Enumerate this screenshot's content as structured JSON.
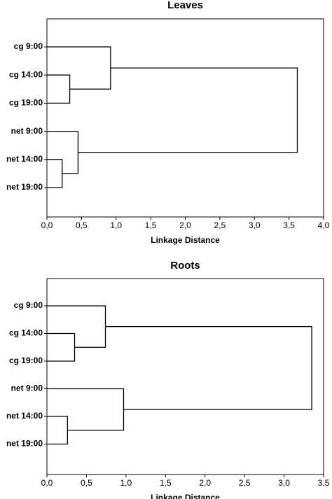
{
  "chart_data": [
    {
      "type": "dendrogram",
      "title": "Leaves",
      "x_label": "Linkage Distance",
      "leaves": [
        "cg 9:00",
        "cg 14:00",
        "cg 19:00",
        "net 9:00",
        "net 14:00",
        "net 19:00"
      ],
      "merges": [
        {
          "nodes": [
            1,
            2
          ],
          "height": 0.33
        },
        {
          "nodes": [
            0,
            6
          ],
          "height": 0.92
        },
        {
          "nodes": [
            4,
            5
          ],
          "height": 0.22
        },
        {
          "nodes": [
            3,
            8
          ],
          "height": 0.45
        },
        {
          "nodes": [
            7,
            9
          ],
          "height": 3.62
        }
      ],
      "xlim": [
        0,
        4
      ],
      "xticks": [
        {
          "value": 0,
          "label": "0,0"
        },
        {
          "value": 0.5,
          "label": "0,5"
        },
        {
          "value": 1,
          "label": "1,0"
        },
        {
          "value": 1.5,
          "label": "1,5"
        },
        {
          "value": 2,
          "label": "2,0"
        },
        {
          "value": 2.5,
          "label": "2,5"
        },
        {
          "value": 3,
          "label": "3,0"
        },
        {
          "value": 3.5,
          "label": "3,5"
        },
        {
          "value": 4,
          "label": "4,0"
        }
      ],
      "color": "#000000"
    },
    {
      "type": "dendrogram",
      "title": "Roots",
      "x_label": "Linkage Distance",
      "leaves": [
        "cg 9:00",
        "cg 14:00",
        "cg 19:00",
        "net 9:00",
        "net 14:00",
        "net 19:00"
      ],
      "merges": [
        {
          "nodes": [
            1,
            2
          ],
          "height": 0.35
        },
        {
          "nodes": [
            0,
            6
          ],
          "height": 0.74
        },
        {
          "nodes": [
            4,
            5
          ],
          "height": 0.26
        },
        {
          "nodes": [
            3,
            8
          ],
          "height": 0.97
        },
        {
          "nodes": [
            7,
            9
          ],
          "height": 3.35
        }
      ],
      "xlim": [
        0,
        3.5
      ],
      "xticks": [
        {
          "value": 0,
          "label": "0,0"
        },
        {
          "value": 0.5,
          "label": "0,5"
        },
        {
          "value": 1,
          "label": "1,0"
        },
        {
          "value": 1.5,
          "label": "1,5"
        },
        {
          "value": 2,
          "label": "2,0"
        },
        {
          "value": 2.5,
          "label": "2,5"
        },
        {
          "value": 3,
          "label": "3,0"
        },
        {
          "value": 3.5,
          "label": "3,5"
        }
      ],
      "color": "#000000"
    }
  ]
}
